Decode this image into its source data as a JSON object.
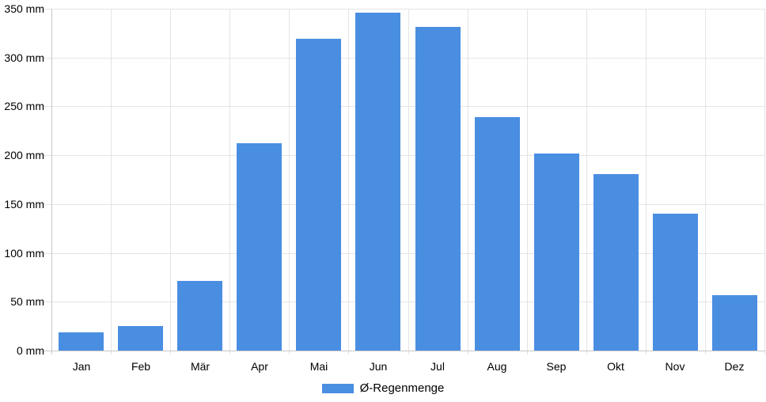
{
  "chart_data": {
    "type": "bar",
    "title": "",
    "categories": [
      "Jan",
      "Feb",
      "Mär",
      "Apr",
      "Mai",
      "Jun",
      "Jul",
      "Aug",
      "Sep",
      "Okt",
      "Nov",
      "Dez"
    ],
    "category_slugs": [
      "jan",
      "feb",
      "mar",
      "apr",
      "mai",
      "jun",
      "jul",
      "aug",
      "sep",
      "okt",
      "nov",
      "dez"
    ],
    "series": [
      {
        "name": "Ø-Regenmenge",
        "values": [
          19,
          25,
          71,
          212,
          319,
          346,
          331,
          239,
          202,
          181,
          140,
          57
        ]
      }
    ],
    "unit": "mm",
    "xlabel": "",
    "ylabel": "",
    "ylim": [
      0,
      350
    ],
    "ytick_step": 50,
    "ytick_labels": [
      "0 mm",
      "50 mm",
      "100 mm",
      "150 mm",
      "200 mm",
      "250 mm",
      "300 mm",
      "350 mm"
    ],
    "grid": true,
    "legend_position": "bottom-center",
    "colors": {
      "bar": "#4a8ee2",
      "gridline": "#e4e4e4",
      "axis_line": "#c8c8c8",
      "text": "#000000",
      "background": "#ffffff"
    }
  },
  "legend": {
    "label": "Ø-Regenmenge"
  }
}
